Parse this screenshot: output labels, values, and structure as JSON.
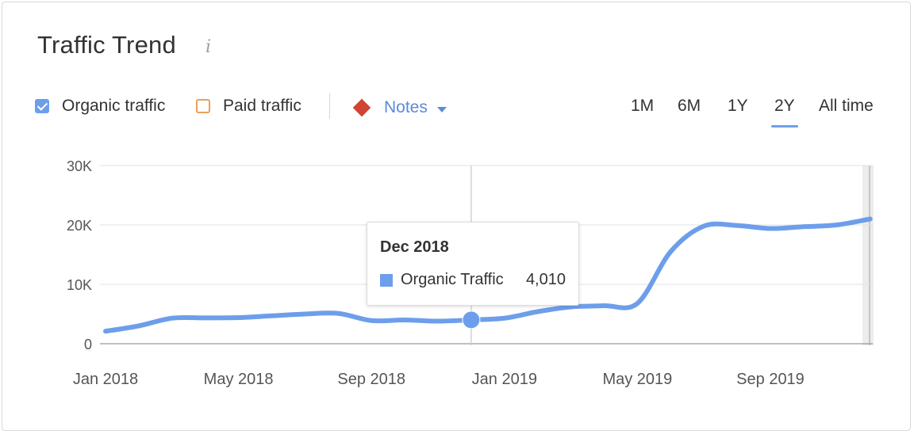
{
  "header": {
    "title": "Traffic Trend",
    "info_icon": "i"
  },
  "legend": {
    "organic_label": "Organic traffic",
    "paid_label": "Paid traffic",
    "notes_label": "Notes",
    "organic_checked": true,
    "paid_checked": false,
    "organic_color": "#6d9eeb",
    "paid_color": "#e8a25a",
    "notes_color": "#d04534"
  },
  "ranges": {
    "items": [
      "1M",
      "6M",
      "1Y",
      "2Y",
      "All time"
    ],
    "active": "2Y"
  },
  "tooltip": {
    "title": "Dec 2018",
    "series": "Organic Traffic",
    "value": "4,010"
  },
  "chart_data": {
    "type": "area",
    "series": [
      {
        "name": "Organic traffic",
        "color": "#6d9eeb",
        "points": [
          [
            "2018-01",
            2100
          ],
          [
            "2018-02",
            3000
          ],
          [
            "2018-03",
            4300
          ],
          [
            "2018-04",
            4350
          ],
          [
            "2018-05",
            4400
          ],
          [
            "2018-06",
            4700
          ],
          [
            "2018-07",
            5000
          ],
          [
            "2018-08",
            5100
          ],
          [
            "2018-09",
            3900
          ],
          [
            "2018-10",
            4000
          ],
          [
            "2018-11",
            3800
          ],
          [
            "2018-12",
            4010
          ],
          [
            "2019-01",
            4300
          ],
          [
            "2019-02",
            5400
          ],
          [
            "2019-03",
            6200
          ],
          [
            "2019-04",
            6400
          ],
          [
            "2019-05",
            6800
          ],
          [
            "2019-06",
            15500
          ],
          [
            "2019-07",
            19800
          ],
          [
            "2019-08",
            19900
          ],
          [
            "2019-09",
            19400
          ],
          [
            "2019-10",
            19700
          ],
          [
            "2019-11",
            20000
          ],
          [
            "2019-12",
            21000
          ]
        ]
      }
    ],
    "y_ticks": [
      "30K",
      "20K",
      "10K",
      "0"
    ],
    "y_tick_values": [
      30000,
      20000,
      10000,
      0
    ],
    "ylim": [
      0,
      30000
    ],
    "x_ticks": [
      "Jan 2018",
      "May 2018",
      "Sep 2018",
      "Jan 2019",
      "May 2019",
      "Sep 2019"
    ],
    "highlight": "2018-12",
    "grid": true
  }
}
